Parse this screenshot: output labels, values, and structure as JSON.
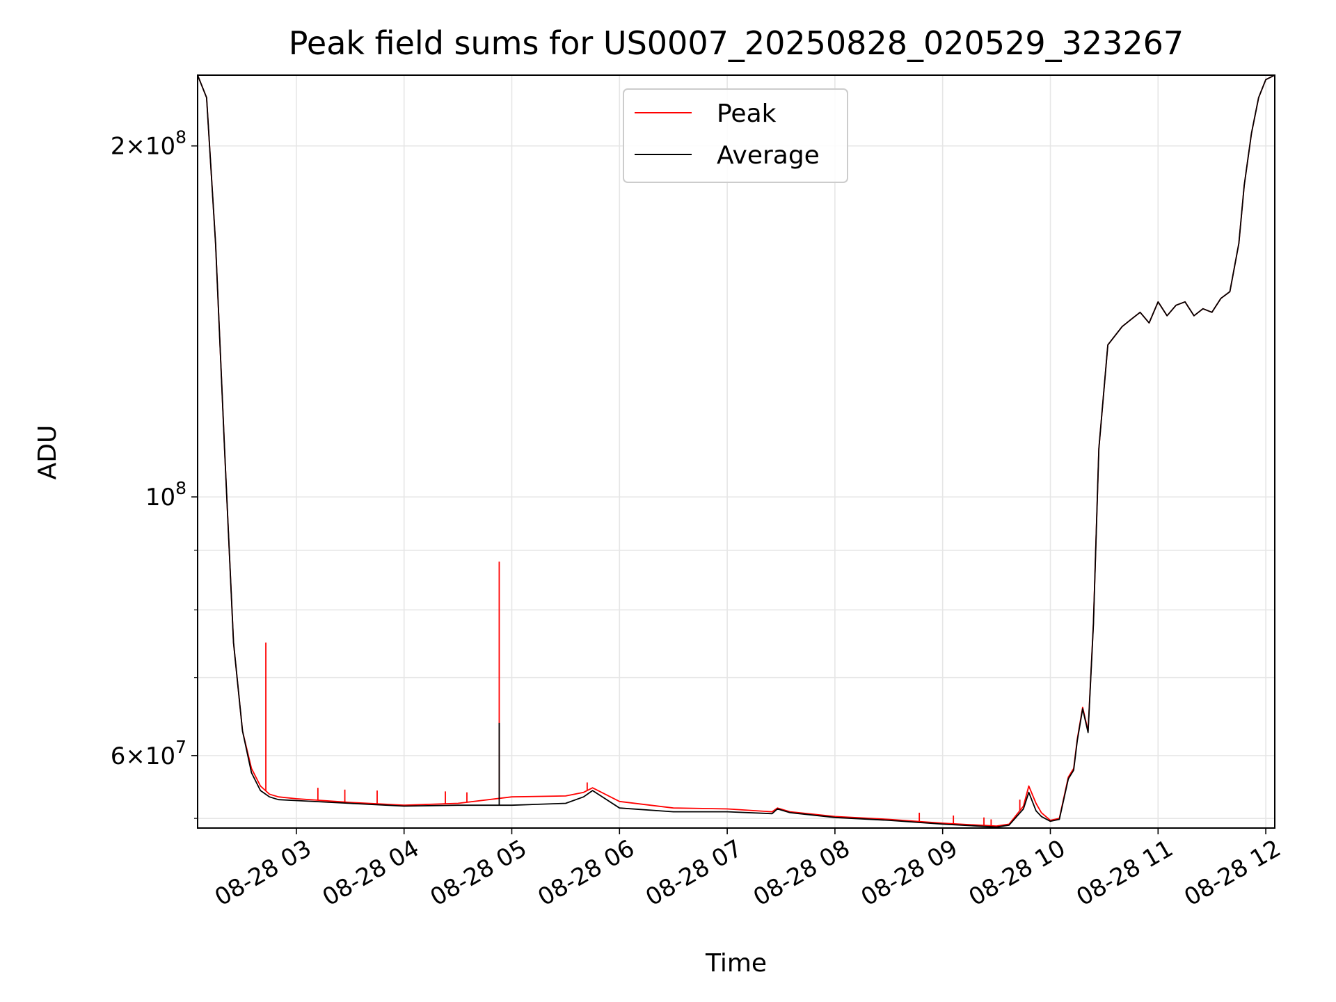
{
  "chart_data": {
    "type": "line",
    "title": "Peak field sums for US0007_20250828_020529_323267",
    "xlabel": "Time",
    "ylabel": "ADU",
    "yscale": "log",
    "grid": true,
    "legend_position": "top-center",
    "xlim": [
      "2025-08-28 02:05",
      "2025-08-28 12:05"
    ],
    "ylim": [
      52000000,
      230000000
    ],
    "x_ticks": [
      {
        "value": "2025-08-28 03:00",
        "label": "08-28 03"
      },
      {
        "value": "2025-08-28 04:00",
        "label": "08-28 04"
      },
      {
        "value": "2025-08-28 05:00",
        "label": "08-28 05"
      },
      {
        "value": "2025-08-28 06:00",
        "label": "08-28 06"
      },
      {
        "value": "2025-08-28 07:00",
        "label": "08-28 07"
      },
      {
        "value": "2025-08-28 08:00",
        "label": "08-28 08"
      },
      {
        "value": "2025-08-28 09:00",
        "label": "08-28 09"
      },
      {
        "value": "2025-08-28 10:00",
        "label": "08-28 10"
      },
      {
        "value": "2025-08-28 11:00",
        "label": "08-28 11"
      },
      {
        "value": "2025-08-28 12:00",
        "label": "08-28 12"
      }
    ],
    "y_major_ticks": [
      {
        "value": 60000000,
        "mantissa": "6",
        "exponent": "7"
      },
      {
        "value": 100000000,
        "mantissa": "",
        "exponent": "8"
      },
      {
        "value": 200000000,
        "mantissa": "2",
        "exponent": "8"
      }
    ],
    "y_minor_ticks": [
      53000000,
      70000000,
      80000000,
      90000000
    ],
    "series": [
      {
        "name": "Peak",
        "color": "#ff0000",
        "x": [
          "2025-08-28 02:05",
          "2025-08-28 02:10",
          "2025-08-28 02:15",
          "2025-08-28 02:20",
          "2025-08-28 02:25",
          "2025-08-28 02:30",
          "2025-08-28 02:35",
          "2025-08-28 02:40",
          "2025-08-28 02:45",
          "2025-08-28 02:50",
          "2025-08-28 03:00",
          "2025-08-28 03:30",
          "2025-08-28 04:00",
          "2025-08-28 04:30",
          "2025-08-28 05:00",
          "2025-08-28 05:30",
          "2025-08-28 05:40",
          "2025-08-28 05:45",
          "2025-08-28 06:00",
          "2025-08-28 06:30",
          "2025-08-28 07:00",
          "2025-08-28 07:25",
          "2025-08-28 07:28",
          "2025-08-28 07:35",
          "2025-08-28 08:00",
          "2025-08-28 08:30",
          "2025-08-28 09:00",
          "2025-08-28 09:30",
          "2025-08-28 09:37",
          "2025-08-28 09:45",
          "2025-08-28 09:48",
          "2025-08-28 09:52",
          "2025-08-28 09:55",
          "2025-08-28 10:00",
          "2025-08-28 10:05",
          "2025-08-28 10:10",
          "2025-08-28 10:13",
          "2025-08-28 10:15",
          "2025-08-28 10:18",
          "2025-08-28 10:21",
          "2025-08-28 10:24",
          "2025-08-28 10:27",
          "2025-08-28 10:32",
          "2025-08-28 10:40",
          "2025-08-28 10:45",
          "2025-08-28 10:50",
          "2025-08-28 10:55",
          "2025-08-28 11:00",
          "2025-08-28 11:05",
          "2025-08-28 11:10",
          "2025-08-28 11:15",
          "2025-08-28 11:20",
          "2025-08-28 11:25",
          "2025-08-28 11:30",
          "2025-08-28 11:35",
          "2025-08-28 11:40",
          "2025-08-28 11:45",
          "2025-08-28 11:48",
          "2025-08-28 11:52",
          "2025-08-28 11:56",
          "2025-08-28 12:00",
          "2025-08-28 12:05"
        ],
        "y": [
          230000000,
          220000000,
          165000000,
          110000000,
          75000000,
          63000000,
          58500000,
          56500000,
          55600000,
          55300000,
          55100000,
          54700000,
          54400000,
          54600000,
          55300000,
          55400000,
          55800000,
          56300000,
          54800000,
          54100000,
          54000000,
          53700000,
          54100000,
          53700000,
          53200000,
          52900000,
          52500000,
          52200000,
          52400000,
          54300000,
          56500000,
          54600000,
          53600000,
          52800000,
          53000000,
          57500000,
          58500000,
          62000000,
          66000000,
          63000000,
          78000000,
          110000000,
          135000000,
          140000000,
          142000000,
          144000000,
          141000000,
          147000000,
          143000000,
          146000000,
          147000000,
          143000000,
          145000000,
          144000000,
          148000000,
          150000000,
          165000000,
          185000000,
          205000000,
          220000000,
          228000000,
          230000000
        ],
        "spikes": [
          {
            "x": "2025-08-28 02:43",
            "y": 75000000
          },
          {
            "x": "2025-08-28 03:12",
            "y": 56300000
          },
          {
            "x": "2025-08-28 03:27",
            "y": 56100000
          },
          {
            "x": "2025-08-28 03:45",
            "y": 56000000
          },
          {
            "x": "2025-08-28 04:23",
            "y": 55900000
          },
          {
            "x": "2025-08-28 04:35",
            "y": 55800000
          },
          {
            "x": "2025-08-28 04:53",
            "y": 88000000
          },
          {
            "x": "2025-08-28 05:42",
            "y": 56900000
          },
          {
            "x": "2025-08-28 08:47",
            "y": 53600000
          },
          {
            "x": "2025-08-28 09:06",
            "y": 53300000
          },
          {
            "x": "2025-08-28 09:23",
            "y": 53100000
          },
          {
            "x": "2025-08-28 09:27",
            "y": 52900000
          },
          {
            "x": "2025-08-28 09:43",
            "y": 55000000
          }
        ]
      },
      {
        "name": "Average",
        "color": "#000000",
        "x": [
          "2025-08-28 02:05",
          "2025-08-28 02:10",
          "2025-08-28 02:15",
          "2025-08-28 02:20",
          "2025-08-28 02:25",
          "2025-08-28 02:30",
          "2025-08-28 02:35",
          "2025-08-28 02:40",
          "2025-08-28 02:45",
          "2025-08-28 02:50",
          "2025-08-28 03:00",
          "2025-08-28 03:30",
          "2025-08-28 04:00",
          "2025-08-28 04:30",
          "2025-08-28 05:00",
          "2025-08-28 05:30",
          "2025-08-28 05:40",
          "2025-08-28 05:45",
          "2025-08-28 06:00",
          "2025-08-28 06:30",
          "2025-08-28 07:00",
          "2025-08-28 07:25",
          "2025-08-28 07:28",
          "2025-08-28 07:35",
          "2025-08-28 08:00",
          "2025-08-28 08:30",
          "2025-08-28 09:00",
          "2025-08-28 09:30",
          "2025-08-28 09:37",
          "2025-08-28 09:45",
          "2025-08-28 09:48",
          "2025-08-28 09:52",
          "2025-08-28 09:55",
          "2025-08-28 10:00",
          "2025-08-28 10:05",
          "2025-08-28 10:10",
          "2025-08-28 10:13",
          "2025-08-28 10:15",
          "2025-08-28 10:18",
          "2025-08-28 10:21",
          "2025-08-28 10:24",
          "2025-08-28 10:27",
          "2025-08-28 10:32",
          "2025-08-28 10:40",
          "2025-08-28 10:45",
          "2025-08-28 10:50",
          "2025-08-28 10:55",
          "2025-08-28 11:00",
          "2025-08-28 11:05",
          "2025-08-28 11:10",
          "2025-08-28 11:15",
          "2025-08-28 11:20",
          "2025-08-28 11:25",
          "2025-08-28 11:30",
          "2025-08-28 11:35",
          "2025-08-28 11:40",
          "2025-08-28 11:45",
          "2025-08-28 11:48",
          "2025-08-28 11:52",
          "2025-08-28 11:56",
          "2025-08-28 12:00",
          "2025-08-28 12:05"
        ],
        "y": [
          230000000,
          220000000,
          165000000,
          110000000,
          75000000,
          63000000,
          58000000,
          56000000,
          55300000,
          55000000,
          54900000,
          54600000,
          54300000,
          54400000,
          54400000,
          54600000,
          55300000,
          56000000,
          54100000,
          53700000,
          53700000,
          53500000,
          54000000,
          53600000,
          53100000,
          52800000,
          52400000,
          52100000,
          52300000,
          54000000,
          55800000,
          53800000,
          53200000,
          52700000,
          52900000,
          57300000,
          58300000,
          61800000,
          65800000,
          62800000,
          77800000,
          110000000,
          135000000,
          140000000,
          142000000,
          144000000,
          141000000,
          147000000,
          143000000,
          146000000,
          147000000,
          143000000,
          145000000,
          144000000,
          148000000,
          150000000,
          165000000,
          185000000,
          205000000,
          220000000,
          228000000,
          230000000
        ],
        "spikes": [
          {
            "x": "2025-08-28 04:53",
            "y": 64000000
          }
        ]
      }
    ]
  }
}
